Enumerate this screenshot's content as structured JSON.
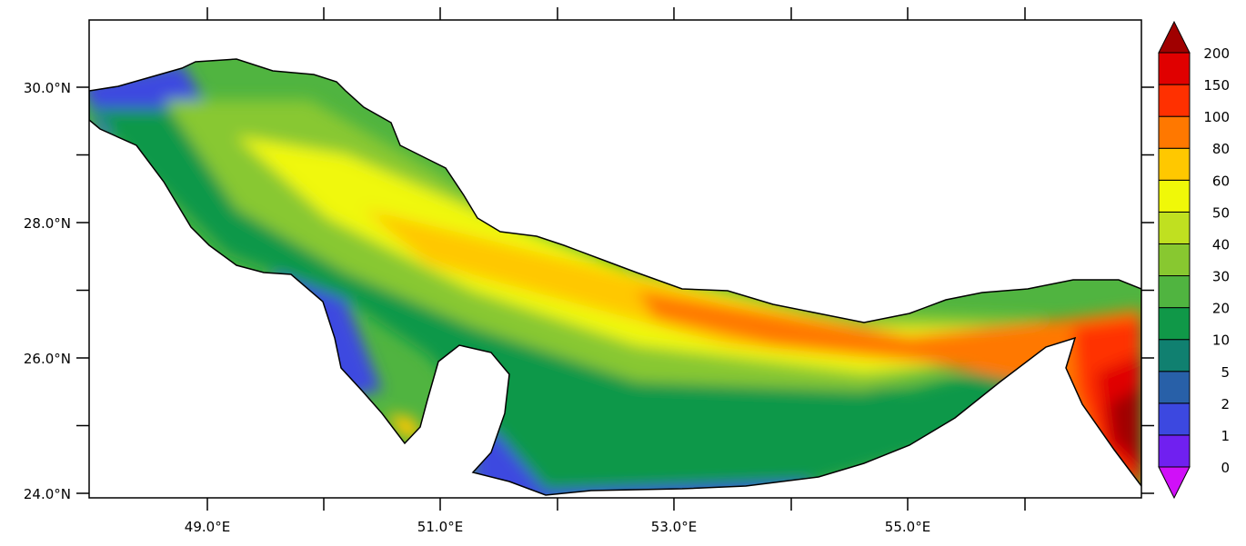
{
  "map": {
    "region": "",
    "lon_range": [
      48.0,
      57.0
    ],
    "lat_range": [
      23.93,
      31.0
    ],
    "x_tick_labels": [
      "49.0°E",
      "51.0°E",
      "53.0°E",
      "55.0°E"
    ],
    "y_tick_labels": [
      "30.0°N",
      "28.0°N",
      "26.0°N",
      "24.0°N"
    ],
    "land_color": "#ffffff",
    "coastline_color": "#000000"
  },
  "colorbar": {
    "orientation": "vertical",
    "extend": "both",
    "levels": [
      "0",
      "1",
      "2",
      "5",
      "10",
      "20",
      "30",
      "40",
      "50",
      "60",
      "80",
      "100",
      "150",
      "200"
    ],
    "under_color": "#d010f8",
    "over_color": "#a00000",
    "colors": [
      "#7020f0",
      "#3c48e0",
      "#2860a8",
      "#108070",
      "#109848",
      "#50b440",
      "#88c830",
      "#c0e020",
      "#f0f808",
      "#ffc800",
      "#ff7800",
      "#ff3000",
      "#e00000"
    ]
  }
}
